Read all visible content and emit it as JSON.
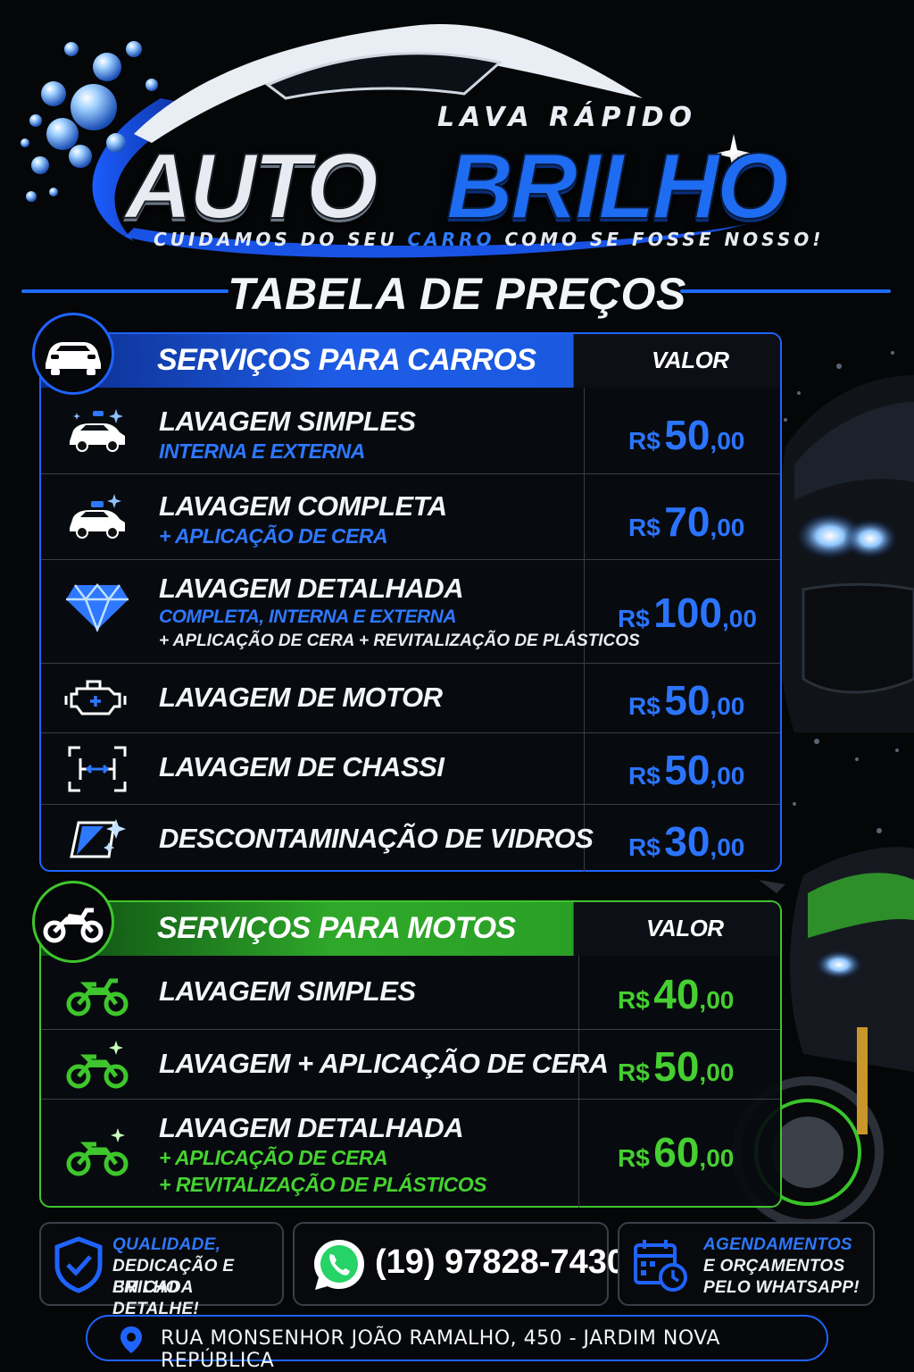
{
  "brand": {
    "prefix": "LAVA RÁPIDO",
    "name_part1": "AUTO",
    "name_part2": "BRILHO",
    "tagline_a": "CUIDAMOS DO SEU ",
    "tagline_hl": "CARRO",
    "tagline_b": " COMO SE FOSSE NOSSO!"
  },
  "title": "TABELA DE PREÇOS",
  "colors": {
    "blue": "#1f63ff",
    "green": "#3ec62c",
    "background": "#050608"
  },
  "car_section": {
    "title": "SERVIÇOS PARA CARROS",
    "value_header": "VALOR",
    "badge_icon": "car-icon",
    "items": [
      {
        "name": "LAVAGEM SIMPLES",
        "sub": "INTERNA E EXTERNA",
        "sub2": "",
        "currency": "R$",
        "amount": "50",
        "cents": ",00",
        "icon": "sparkle-car-icon"
      },
      {
        "name": "LAVAGEM COMPLETA",
        "sub": "+ APLICAÇÃO DE CERA",
        "sub2": "",
        "currency": "R$",
        "amount": "70",
        "cents": ",00",
        "icon": "sparkle-car-icon"
      },
      {
        "name": "LAVAGEM DETALHADA",
        "sub": "COMPLETA, INTERNA E EXTERNA",
        "sub2": "+ APLICAÇÃO DE CERA + REVITALIZAÇÃO DE PLÁSTICOS",
        "currency": "R$",
        "amount": "100",
        "cents": ",00",
        "icon": "diamond-icon"
      },
      {
        "name": "LAVAGEM DE MOTOR",
        "sub": "",
        "sub2": "",
        "currency": "R$",
        "amount": "50",
        "cents": ",00",
        "icon": "engine-icon"
      },
      {
        "name": "LAVAGEM DE CHASSI",
        "sub": "",
        "sub2": "",
        "currency": "R$",
        "amount": "50",
        "cents": ",00",
        "icon": "chassis-icon"
      },
      {
        "name": "DESCONTAMINAÇÃO DE VIDROS",
        "sub": "",
        "sub2": "",
        "currency": "R$",
        "amount": "30",
        "cents": ",00",
        "icon": "windshield-icon"
      }
    ]
  },
  "moto_section": {
    "title": "SERVIÇOS PARA MOTOS",
    "value_header": "VALOR",
    "badge_icon": "motorcycle-icon",
    "items": [
      {
        "name": "LAVAGEM SIMPLES",
        "sub": "",
        "sub3": "",
        "currency": "R$",
        "amount": "40",
        "cents": ",00",
        "icon": "motorcycle-icon"
      },
      {
        "name": "LAVAGEM + APLICAÇÃO DE CERA",
        "sub": "",
        "sub3": "",
        "currency": "R$",
        "amount": "50",
        "cents": ",00",
        "icon": "sparkle-motorcycle-icon"
      },
      {
        "name": "LAVAGEM DETALHADA",
        "sub": "+ APLICAÇÃO DE CERA",
        "sub3": "+ REVITALIZAÇÃO DE PLÁSTICOS",
        "currency": "R$",
        "amount": "60",
        "cents": ",00",
        "icon": "sparkle-motorcycle-icon"
      }
    ]
  },
  "footer": {
    "quality_line1": "QUALIDADE,",
    "quality_line2": "DEDICAÇÃO E BRILHO",
    "quality_line3": "EM CADA DETALHE!",
    "phone": "(19) 97828-7430",
    "schedule_line1": "AGENDAMENTOS",
    "schedule_line2": "E ORÇAMENTOS",
    "schedule_line3": "PELO WHATSAPP!",
    "address": "RUA MONSENHOR JOÃO RAMALHO, 450 - JARDIM NOVA REPÚBLICA"
  }
}
